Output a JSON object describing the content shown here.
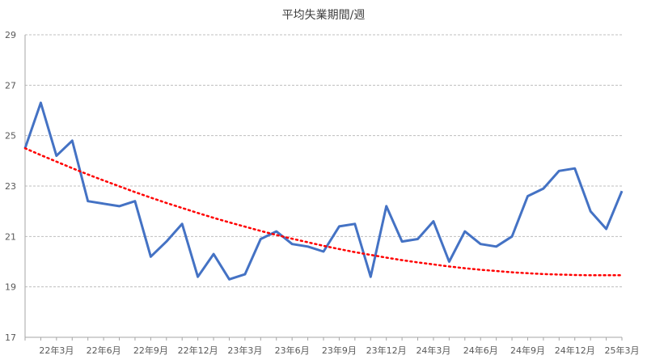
{
  "chart_data": {
    "type": "line",
    "title": "平均失業期間/週",
    "xlabel": "",
    "ylabel": "",
    "ylim": [
      17,
      29
    ],
    "yticks": [
      17,
      19,
      21,
      23,
      25,
      27,
      29
    ],
    "grid": true,
    "legend": "none",
    "x": [
      "22年1月",
      "22年2月",
      "22年3月",
      "22年4月",
      "22年5月",
      "22年6月",
      "22年7月",
      "22年8月",
      "22年9月",
      "22年10月",
      "22年11月",
      "22年12月",
      "23年1月",
      "23年2月",
      "23年3月",
      "23年4月",
      "23年5月",
      "23年6月",
      "23年7月",
      "23年8月",
      "23年9月",
      "23年10月",
      "23年11月",
      "23年12月",
      "24年1月",
      "24年2月",
      "24年3月",
      "24年4月",
      "24年5月",
      "24年6月",
      "24年7月",
      "24年8月",
      "24年9月",
      "24年10月",
      "24年11月",
      "24年12月",
      "25年1月",
      "25年2月",
      "25年3月"
    ],
    "xtick_labels": [
      "22年3月",
      "22年6月",
      "22年9月",
      "22年12月",
      "23年3月",
      "23年6月",
      "23年9月",
      "23年12月",
      "24年3月",
      "24年6月",
      "24年9月",
      "24年12月",
      "25年3月"
    ],
    "xtick_indices": [
      2,
      5,
      8,
      11,
      14,
      17,
      20,
      23,
      26,
      29,
      32,
      35,
      38
    ],
    "series": [
      {
        "values": [
          24.5,
          26.3,
          24.2,
          24.8,
          22.4,
          22.3,
          22.2,
          22.4,
          20.2,
          20.8,
          21.5,
          19.4,
          20.3,
          19.3,
          19.5,
          20.9,
          21.2,
          20.7,
          20.6,
          20.4,
          21.4,
          21.5,
          19.4,
          22.2,
          20.8,
          20.9,
          21.6,
          20.0,
          21.2,
          20.7,
          20.6,
          21.0,
          22.6,
          22.9,
          23.6,
          23.7,
          22.0,
          21.3,
          22.8
        ],
        "color": "#4472c4",
        "style": "solid"
      },
      {
        "values": [
          24.5,
          24.23,
          23.97,
          23.71,
          23.46,
          23.22,
          22.99,
          22.76,
          22.54,
          22.33,
          22.13,
          21.93,
          21.74,
          21.56,
          21.39,
          21.22,
          21.06,
          20.91,
          20.77,
          20.63,
          20.5,
          20.38,
          20.27,
          20.16,
          20.06,
          19.97,
          19.89,
          19.81,
          19.74,
          19.68,
          19.63,
          19.58,
          19.54,
          19.51,
          19.49,
          19.47,
          19.46,
          19.46,
          19.46
        ],
        "color": "#ff0000",
        "style": "dotted"
      }
    ]
  },
  "colors": {
    "series_line": "#4472c4",
    "trend_line": "#ff0000",
    "grid": "#bfbfbf",
    "axis": "#a6a6a6",
    "text": "#595959"
  }
}
